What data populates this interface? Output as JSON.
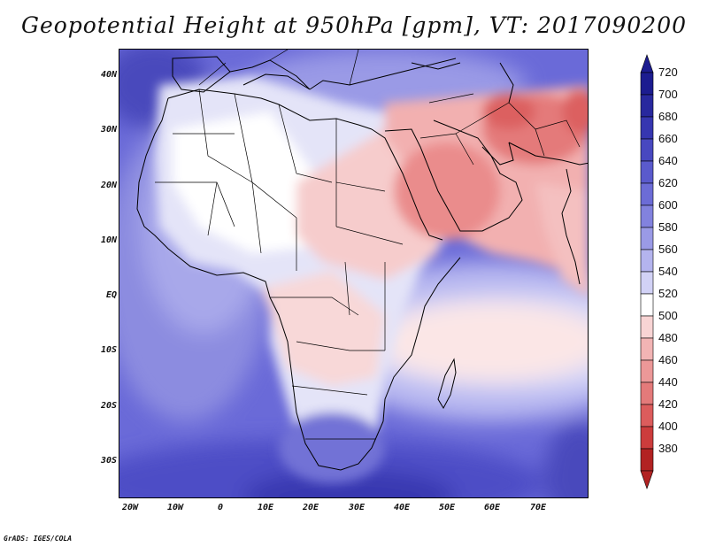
{
  "title": "Geopotential Height at 950hPa [gpm], VT: 2017090200",
  "credit": "GrADS: IGES/COLA",
  "map": {
    "projection": "latitude-longitude",
    "variable": "Geopotential Height",
    "level": "950hPa",
    "units": "gpm",
    "valid_time": "2017090200",
    "lon_range": [
      -22,
      80
    ],
    "lat_range": [
      -37,
      45
    ],
    "lat_ticks": [
      "40N",
      "30N",
      "20N",
      "10N",
      "EQ",
      "10S",
      "20S",
      "30S"
    ],
    "lon_ticks": [
      "20W",
      "10W",
      "0",
      "10E",
      "20E",
      "30E",
      "40E",
      "50E",
      "60E",
      "70E"
    ],
    "pattern": "high heights (blue) over oceans and southern Africa; low heights (red) over Arabian Peninsula, Iran, Pakistan and Sahel"
  },
  "colorbar": {
    "levels": [
      "720",
      "700",
      "680",
      "660",
      "640",
      "620",
      "600",
      "580",
      "560",
      "540",
      "520",
      "500",
      "480",
      "460",
      "440",
      "420",
      "400",
      "380"
    ],
    "colors": [
      "#1c1c90",
      "#28289e",
      "#3636b0",
      "#4848c0",
      "#5a5acc",
      "#6c6cd6",
      "#8282de",
      "#9a9ae6",
      "#b4b4ee",
      "#d2d2f6",
      "#ffffff",
      "#f8d4d4",
      "#f2b4b4",
      "#ec9898",
      "#e47a7a",
      "#dc5c5c",
      "#cc3c3c",
      "#b22222"
    ],
    "top_arrow_color": "#1c1c90",
    "bottom_arrow_color": "#b22222"
  }
}
